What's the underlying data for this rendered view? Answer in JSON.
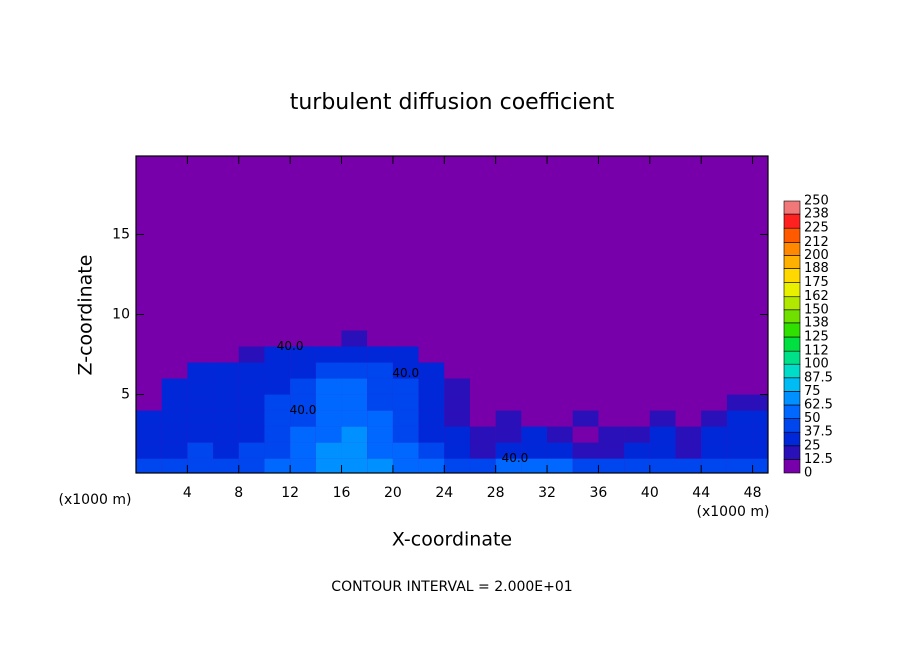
{
  "chart_data": {
    "type": "contourf",
    "title": "turbulent diffusion coefficient",
    "x_label": "X-coordinate",
    "y_label": "Z-coordinate",
    "x_unit": "(x1000 m)",
    "y_unit": "(x1000 m)",
    "footer": "CONTOUR INTERVAL = 2.000E+01",
    "xlim": [
      0,
      49.2
    ],
    "ylim": [
      0.1,
      19.9
    ],
    "xticks": [
      4,
      8,
      12,
      16,
      20,
      24,
      28,
      32,
      36,
      40,
      44,
      48
    ],
    "yticks": [
      5,
      10,
      15
    ],
    "x": [
      1,
      3,
      5,
      7,
      9,
      11,
      13,
      15,
      17,
      19,
      21,
      23,
      25,
      27,
      29,
      31,
      33,
      35,
      37,
      39,
      41,
      43,
      45,
      47,
      49
    ],
    "y": [
      0.5,
      1.5,
      2.5,
      3.5,
      4.5,
      5.5,
      6.5,
      7.5,
      8.5
    ],
    "z": [
      [
        40,
        40,
        45,
        45,
        45,
        50,
        55,
        65,
        70,
        65,
        60,
        55,
        45,
        45,
        50,
        55,
        50,
        45,
        40,
        40,
        45,
        45,
        45,
        45,
        40
      ],
      [
        30,
        35,
        40,
        35,
        40,
        45,
        55,
        65,
        70,
        60,
        50,
        40,
        30,
        20,
        30,
        30,
        25,
        20,
        15,
        25,
        30,
        20,
        30,
        35,
        30
      ],
      [
        30,
        25,
        35,
        30,
        35,
        40,
        50,
        60,
        65,
        55,
        45,
        35,
        25,
        15,
        20,
        25,
        15,
        10,
        20,
        15,
        25,
        15,
        25,
        30,
        30
      ],
      [
        35,
        30,
        35,
        30,
        35,
        40,
        45,
        60,
        60,
        50,
        40,
        30,
        20,
        10,
        15,
        10,
        10,
        15,
        10,
        10,
        15,
        10,
        20,
        25,
        30
      ],
      [
        5,
        35,
        35,
        30,
        35,
        40,
        45,
        55,
        55,
        45,
        40,
        30,
        20,
        10,
        5,
        10,
        5,
        10,
        5,
        10,
        5,
        5,
        10,
        15,
        15
      ],
      [
        5,
        35,
        35,
        35,
        35,
        35,
        40,
        50,
        50,
        45,
        40,
        30,
        20,
        5,
        5,
        5,
        5,
        5,
        5,
        5,
        5,
        5,
        5,
        5,
        5
      ],
      [
        5,
        5,
        30,
        30,
        30,
        30,
        35,
        40,
        45,
        40,
        35,
        30,
        10,
        5,
        5,
        5,
        5,
        5,
        5,
        5,
        5,
        5,
        5,
        5,
        5
      ],
      [
        5,
        5,
        5,
        5,
        20,
        25,
        30,
        30,
        35,
        30,
        25,
        5,
        5,
        5,
        5,
        5,
        5,
        5,
        5,
        5,
        5,
        5,
        5,
        5,
        5
      ],
      [
        5,
        5,
        5,
        5,
        5,
        5,
        5,
        10,
        20,
        10,
        5,
        5,
        5,
        5,
        5,
        5,
        5,
        5,
        5,
        5,
        5,
        5,
        5,
        5,
        5
      ]
    ],
    "contour_labels": [
      "40.0",
      "40.0",
      "40.0",
      "40.0"
    ],
    "colorbar": {
      "levels": [
        0,
        12.5,
        25,
        37.5,
        50,
        62.5,
        75,
        87.5,
        100,
        112,
        125,
        138,
        150,
        162,
        175,
        188,
        200,
        212,
        225,
        238,
        250
      ],
      "colors": [
        "#7800aa",
        "#2a10b8",
        "#0028d8",
        "#0046ee",
        "#0068ff",
        "#0090ff",
        "#00bcf4",
        "#00dcc8",
        "#00e088",
        "#00e040",
        "#30e000",
        "#70e000",
        "#b0e800",
        "#e8f000",
        "#ffd800",
        "#ffb000",
        "#ff8800",
        "#ff5a00",
        "#ff2020",
        "#f07878"
      ]
    }
  }
}
